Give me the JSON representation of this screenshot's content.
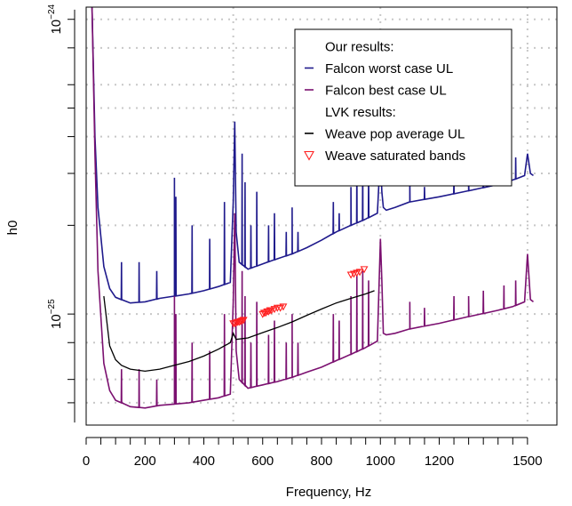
{
  "chart_data": {
    "type": "line",
    "title": "",
    "xlabel": "Frequency, Hz",
    "ylabel": "h0",
    "xlim": [
      0,
      1600
    ],
    "ylim": [
      4.2e-26,
      1.1e-24
    ],
    "yscale": "log",
    "grid": true,
    "grid_style": "dotted",
    "x_ticks": [
      0,
      200,
      400,
      600,
      800,
      1000,
      1200,
      1500
    ],
    "x_tick_labels": [
      "0",
      "200",
      "400",
      "600",
      "800",
      "1000",
      "1200",
      "1500"
    ],
    "x_grid": [
      500,
      1000,
      1500
    ],
    "y_ticks": [
      {
        "value": 1e-24,
        "base": "10",
        "exp": "−24"
      },
      {
        "value": 1e-25,
        "base": "10",
        "exp": "−25"
      }
    ],
    "y_grid": [
      5e-26,
      6e-26,
      8e-26,
      1e-25,
      2e-25,
      3e-25,
      4e-25,
      5e-25,
      6e-25,
      8e-25,
      1e-24
    ],
    "legend_position": "top-right",
    "legend": [
      {
        "label": "Our results:",
        "marker": "none",
        "color": "#000000"
      },
      {
        "label": "Falcon worst case UL",
        "marker": "line",
        "color": "#1f1a8c"
      },
      {
        "label": "Falcon best case UL",
        "marker": "line",
        "color": "#7b1070"
      },
      {
        "label": "LVK results:",
        "marker": "none",
        "color": "#000000"
      },
      {
        "label": "Weave pop average UL",
        "marker": "line",
        "color": "#000000"
      },
      {
        "label": "Weave saturated bands",
        "marker": "triangle-down",
        "color": "#ff2020"
      }
    ],
    "series": [
      {
        "name": "Falcon worst case UL",
        "color": "#1f1a8c",
        "x": [
          20,
          30,
          40,
          60,
          80,
          100,
          150,
          200,
          250,
          300,
          350,
          400,
          450,
          490,
          500,
          505,
          510,
          520,
          550,
          600,
          650,
          700,
          750,
          800,
          850,
          900,
          950,
          990,
          1000,
          1005,
          1010,
          1020,
          1050,
          1100,
          1200,
          1300,
          1400,
          1450,
          1490,
          1500,
          1510,
          1520
        ],
        "y": [
          1.2e-24,
          4e-25,
          2.3e-25,
          1.45e-25,
          1.22e-25,
          1.14e-25,
          1.09e-25,
          1.1e-25,
          1.13e-25,
          1.15e-25,
          1.17e-25,
          1.2e-25,
          1.24e-25,
          1.28e-25,
          2.4e-25,
          4.5e-25,
          1.9e-25,
          1.5e-25,
          1.42e-25,
          1.48e-25,
          1.54e-25,
          1.6e-25,
          1.68e-25,
          1.78e-25,
          1.9e-25,
          2e-25,
          2.1e-25,
          2.2e-25,
          3.5e-25,
          2.6e-25,
          2.3e-25,
          2.25e-25,
          2.3e-25,
          2.4e-25,
          2.5e-25,
          2.62e-25,
          2.75e-25,
          2.85e-25,
          2.95e-25,
          3.5e-25,
          3e-25,
          2.95e-25
        ]
      },
      {
        "name": "Falcon best case UL",
        "color": "#7b1070",
        "x": [
          20,
          30,
          40,
          60,
          80,
          100,
          150,
          200,
          250,
          300,
          350,
          400,
          450,
          490,
          500,
          505,
          510,
          520,
          550,
          600,
          650,
          700,
          750,
          800,
          850,
          900,
          950,
          990,
          1000,
          1005,
          1010,
          1020,
          1050,
          1100,
          1200,
          1300,
          1400,
          1450,
          1490,
          1500,
          1510,
          1520
        ],
        "y": [
          1.2e-24,
          3.5e-25,
          1.4e-25,
          6.8e-26,
          5.5e-26,
          5.1e-26,
          4.85e-26,
          4.8e-26,
          4.9e-26,
          4.95e-26,
          5e-26,
          5.1e-26,
          5.2e-26,
          5.35e-26,
          1.1e-25,
          2.2e-25,
          7.5e-26,
          6e-26,
          5.6e-26,
          5.75e-26,
          5.9e-26,
          6.1e-26,
          6.35e-26,
          6.6e-26,
          6.95e-26,
          7.3e-26,
          7.7e-26,
          8.1e-26,
          1.8e-25,
          1.3e-25,
          8.6e-26,
          8.5e-26,
          8.6e-26,
          8.9e-26,
          9.3e-26,
          9.8e-26,
          1.03e-25,
          1.06e-25,
          1.1e-25,
          1.6e-25,
          1.12e-25,
          1.1e-25
        ]
      },
      {
        "name": "Weave pop average UL",
        "color": "#000000",
        "x": [
          60,
          80,
          100,
          120,
          150,
          200,
          250,
          300,
          350,
          400,
          450,
          490,
          500,
          510,
          550,
          600,
          650,
          700,
          750,
          800,
          850,
          900,
          950,
          980
        ],
        "y": [
          1.15e-25,
          7.8e-26,
          7e-26,
          6.7e-26,
          6.5e-26,
          6.4e-26,
          6.5e-26,
          6.7e-26,
          6.9e-26,
          7.2e-26,
          7.6e-26,
          8e-26,
          8.6e-26,
          8.2e-26,
          8.3e-26,
          8.65e-26,
          9e-26,
          9.4e-26,
          9.9e-26,
          1.04e-25,
          1.09e-25,
          1.13e-25,
          1.17e-25,
          1.2e-25
        ]
      }
    ],
    "spikes": [
      {
        "series": "Falcon worst case UL",
        "freqs": [
          120,
          180,
          240,
          300,
          305,
          360,
          420,
          470,
          530,
          540,
          560,
          580,
          620,
          640,
          680,
          700,
          720,
          840,
          860,
          900,
          920,
          940,
          960,
          1100,
          1150,
          1250,
          1300,
          1350,
          1420,
          1460
        ],
        "heights": [
          1.5e-25,
          1.5e-25,
          1.4e-25,
          2.9e-25,
          2.5e-25,
          2e-25,
          1.8e-25,
          2.4e-25,
          3.5e-25,
          2.8e-25,
          2e-25,
          2.6e-25,
          2e-25,
          2.2e-25,
          1.9e-25,
          2.3e-25,
          1.9e-25,
          2.4e-25,
          2.2e-25,
          2.7e-25,
          3.3e-25,
          3.4e-25,
          3e-25,
          2.9e-25,
          2.7e-25,
          2.9e-25,
          2.9e-25,
          3e-25,
          3.2e-25,
          3.4e-25
        ]
      },
      {
        "series": "Falcon best case UL",
        "freqs": [
          120,
          180,
          240,
          300,
          305,
          360,
          420,
          470,
          530,
          540,
          560,
          580,
          620,
          640,
          680,
          700,
          720,
          840,
          860,
          900,
          920,
          940,
          960,
          1100,
          1150,
          1250,
          1300,
          1350,
          1420,
          1460
        ],
        "heights": [
          6.5e-26,
          6.5e-26,
          6e-26,
          1.15e-25,
          1e-25,
          8e-26,
          7.5e-26,
          1e-25,
          1.4e-25,
          1.15e-25,
          8e-26,
          1.1e-25,
          8.5e-26,
          9.5e-26,
          8e-26,
          1e-25,
          8e-26,
          1e-25,
          9.5e-26,
          1.15e-25,
          1.35e-25,
          1.4e-25,
          1.3e-25,
          1.1e-25,
          1.05e-25,
          1.15e-25,
          1.15e-25,
          1.2e-25,
          1.25e-25,
          1.3e-25
        ]
      }
    ],
    "points": {
      "name": "Weave saturated bands",
      "color": "#ff2020",
      "x": [
        500,
        505,
        510,
        515,
        520,
        525,
        530,
        535,
        600,
        605,
        610,
        615,
        620,
        625,
        630,
        640,
        650,
        660,
        670,
        900,
        910,
        920,
        930,
        945
      ],
      "y": [
        9.3e-26,
        9.3e-26,
        9.35e-26,
        9.4e-26,
        9.4e-26,
        9.45e-26,
        9.5e-26,
        9.55e-26,
        1e-25,
        1.01e-25,
        1.01e-25,
        1.02e-25,
        1.02e-25,
        1.03e-25,
        1.03e-25,
        1.04e-25,
        1.05e-25,
        1.05e-25,
        1.06e-25,
        1.36e-25,
        1.37e-25,
        1.38e-25,
        1.39e-25,
        1.42e-25
      ]
    }
  }
}
